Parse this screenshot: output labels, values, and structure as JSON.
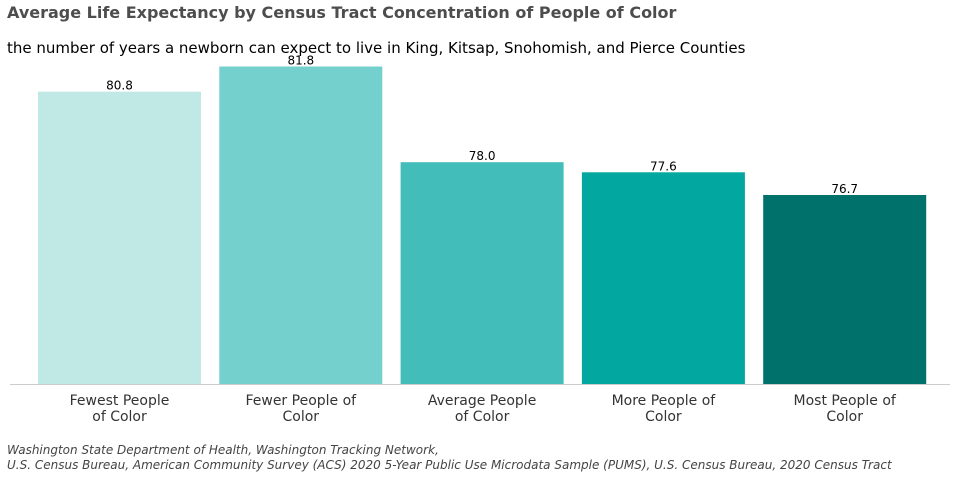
{
  "title": "Average Life Expectancy by Census Tract Concentration of People of Color",
  "subtitle": "the number of years a newborn can expect to live in King, Kitsap, Snohomish, and Pierce Counties",
  "chart_data": {
    "type": "bar",
    "categories": [
      [
        "Fewest People",
        "of Color"
      ],
      [
        "Fewer People of",
        "Color"
      ],
      [
        "Average People",
        "of Color"
      ],
      [
        "More People of",
        "Color"
      ],
      [
        "Most People of",
        "Color"
      ]
    ],
    "values": [
      80.8,
      81.8,
      78.0,
      77.6,
      76.7
    ],
    "value_labels": [
      "80.8",
      "81.8",
      "78.0",
      "77.6",
      "76.7"
    ],
    "colors": [
      "#c0e8e5",
      "#74d0cd",
      "#42bdb9",
      "#02a8a0",
      "#00726b"
    ],
    "ylim": [
      69.2,
      84.4
    ],
    "grid": false,
    "legend": "none"
  },
  "source": {
    "line1": "Washington State Department of Health, Washington Tracking Network,",
    "line2": "U.S. Census Bureau, American Community Survey (ACS) 2020 5-Year Public Use Microdata Sample (PUMS), U.S. Census Bureau, 2020 Census Tract"
  }
}
